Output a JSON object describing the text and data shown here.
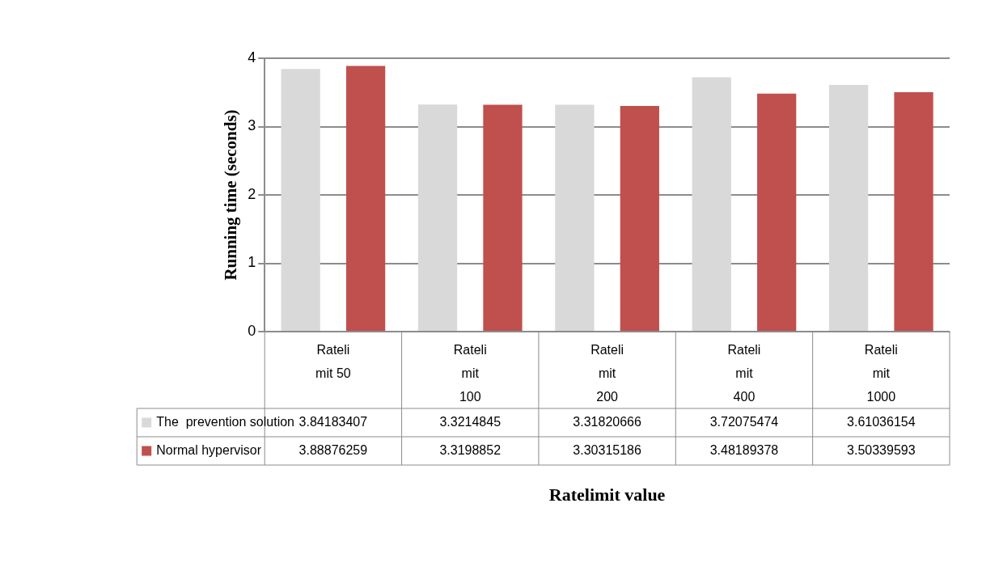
{
  "chart_data": {
    "type": "bar",
    "xlabel": "Ratelimit value",
    "ylabel": "Running time (seconds)",
    "categories": [
      "Rateli mit 50",
      "Rateli mit 100",
      "Rateli mit 200",
      "Rateli mit 400",
      "Rateli mit 1000"
    ],
    "series": [
      {
        "name": "The  prevention solution",
        "color": "#d9d9d9",
        "values": [
          3.84183407,
          3.3214845,
          3.31820666,
          3.72075474,
          3.61036154
        ]
      },
      {
        "name": "Normal hypervisor",
        "color": "#c0504d",
        "values": [
          3.88876259,
          3.3198852,
          3.30315186,
          3.48189378,
          3.50339593
        ]
      }
    ],
    "ylim": [
      0,
      4
    ],
    "yticks": [
      0,
      1,
      2,
      3,
      4
    ],
    "grid": "y",
    "legend": "bottom left",
    "data_labels": true
  }
}
